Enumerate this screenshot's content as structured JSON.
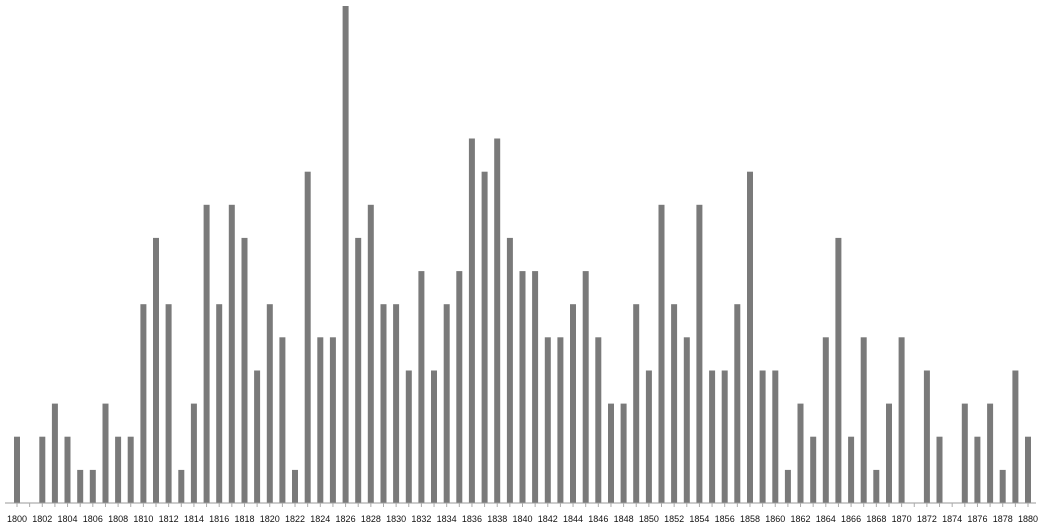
{
  "chart_data": {
    "type": "bar",
    "title": "",
    "xlabel": "",
    "ylabel": "",
    "ylim": [
      0,
      15
    ],
    "grid": false,
    "y_axis_shown": false,
    "bar_color": "#7a7a7a",
    "categories": [
      1800,
      1801,
      1802,
      1803,
      1804,
      1805,
      1806,
      1807,
      1808,
      1809,
      1810,
      1811,
      1812,
      1813,
      1814,
      1815,
      1816,
      1817,
      1818,
      1819,
      1820,
      1821,
      1822,
      1823,
      1824,
      1825,
      1826,
      1827,
      1828,
      1829,
      1830,
      1831,
      1832,
      1833,
      1834,
      1835,
      1836,
      1837,
      1838,
      1839,
      1840,
      1841,
      1842,
      1843,
      1844,
      1845,
      1846,
      1847,
      1848,
      1849,
      1850,
      1851,
      1852,
      1853,
      1854,
      1855,
      1856,
      1857,
      1858,
      1859,
      1860,
      1861,
      1862,
      1863,
      1864,
      1865,
      1866,
      1867,
      1868,
      1869,
      1870,
      1871,
      1872,
      1873,
      1874,
      1875,
      1876,
      1877,
      1878,
      1879,
      1880
    ],
    "values": [
      2,
      0,
      2,
      3,
      2,
      1,
      1,
      3,
      2,
      2,
      6,
      8,
      6,
      1,
      3,
      9,
      6,
      9,
      8,
      4,
      6,
      5,
      1,
      10,
      5,
      5,
      15,
      8,
      9,
      6,
      6,
      4,
      7,
      4,
      6,
      7,
      11,
      10,
      11,
      8,
      7,
      7,
      5,
      5,
      6,
      7,
      5,
      3,
      3,
      6,
      4,
      9,
      6,
      5,
      9,
      4,
      4,
      6,
      10,
      4,
      4,
      1,
      3,
      2,
      5,
      8,
      2,
      5,
      1,
      3,
      5,
      0,
      4,
      2,
      0,
      3,
      2,
      3,
      1,
      4,
      2
    ],
    "tick_labels": [
      "1800",
      "1802",
      "1804",
      "1806",
      "1808",
      "1810",
      "1812",
      "1814",
      "1816",
      "1818",
      "1820",
      "1822",
      "1824",
      "1826",
      "1828",
      "1830",
      "1832",
      "1834",
      "1836",
      "1838",
      "1840",
      "1842",
      "1844",
      "1846",
      "1848",
      "1850",
      "1852",
      "1854",
      "1856",
      "1858",
      "1860",
      "1862",
      "1864",
      "1866",
      "1868",
      "1870",
      "1872",
      "1874",
      "1876",
      "1878",
      "1880"
    ]
  }
}
